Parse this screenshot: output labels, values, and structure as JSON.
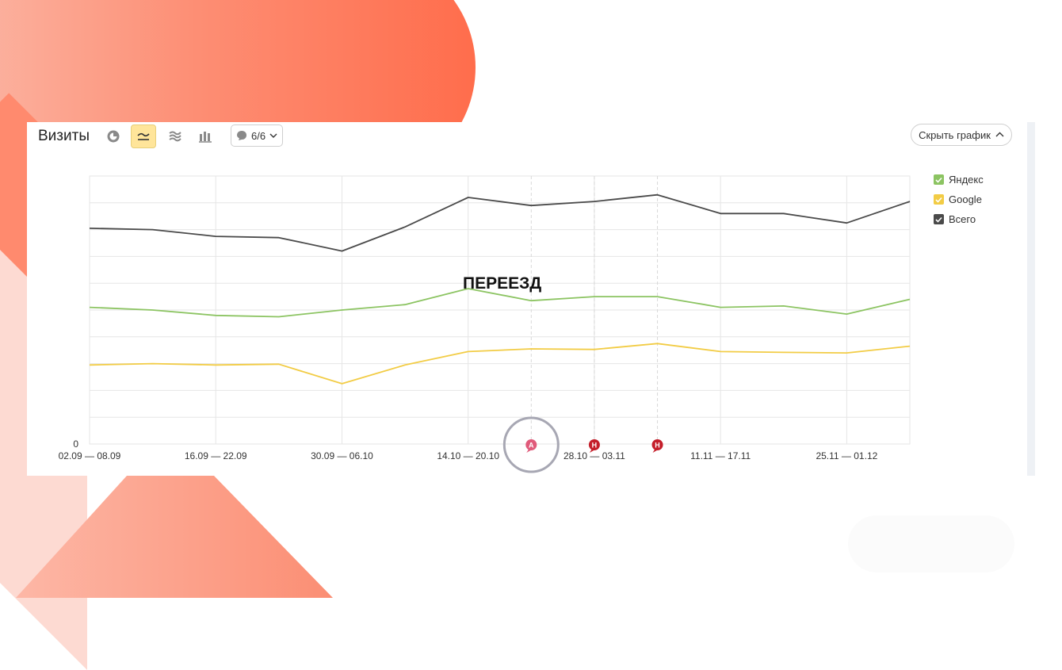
{
  "header": {
    "title": "Визиты",
    "annotations_counter": "6/6",
    "hide_chart_label": "Скрыть график"
  },
  "event": {
    "label": "ПЕРЕЕЗД",
    "marker_letter": "А",
    "other_markers": [
      "Н",
      "Н"
    ]
  },
  "colors": {
    "yandex": "#8cc462",
    "google": "#f2cc45",
    "total": "#4a4a4a",
    "grid": "#e6e6e6",
    "accent": "#ffe59a"
  },
  "chart_data": {
    "type": "line",
    "title": "Визиты",
    "y_tick_labels": [
      "0"
    ],
    "x_tick_labels": [
      "02.09 — 08.09",
      "16.09 — 22.09",
      "30.09 — 06.10",
      "14.10 — 20.10",
      "28.10 — 03.11",
      "11.11 — 17.11",
      "25.11 — 01.12"
    ],
    "x_count": 14,
    "ylim": [
      0,
      100
    ],
    "grid": true,
    "legend_position": "right",
    "series": [
      {
        "name": "Яндекс",
        "color": "#8cc462",
        "values": [
          51,
          50,
          48,
          47.5,
          50,
          52,
          58,
          53.5,
          55,
          55,
          51,
          51.5,
          48.5,
          54
        ]
      },
      {
        "name": "Google",
        "color": "#f2cc45",
        "values": [
          29.5,
          30,
          29.5,
          29.8,
          22.5,
          29.5,
          34.5,
          35.5,
          35.3,
          37.5,
          34.5,
          34.2,
          34,
          36.5
        ]
      },
      {
        "name": "Всего",
        "color": "#4a4a4a",
        "values": [
          80.5,
          80,
          77.5,
          77,
          72,
          81,
          92,
          89,
          90.5,
          93,
          86,
          86,
          82.5,
          90.5
        ]
      }
    ],
    "event_markers": [
      {
        "week_index": 7,
        "letter": "А",
        "color": "#e05a7a",
        "label": "ПЕРЕЕЗД"
      },
      {
        "week_index": 8,
        "letter": "Н",
        "color": "#c41e2a"
      },
      {
        "week_index": 9,
        "letter": "Н",
        "color": "#c41e2a"
      }
    ]
  }
}
